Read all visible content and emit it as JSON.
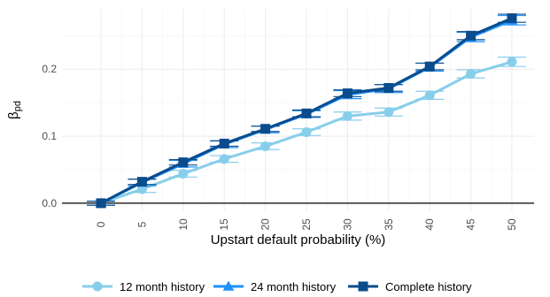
{
  "chart_data": {
    "type": "line",
    "xlabel": "Upstart default probability (%)",
    "ylabel_main": "β",
    "ylabel_sub": "pd",
    "x": [
      0,
      5,
      10,
      15,
      20,
      25,
      30,
      35,
      40,
      45,
      50
    ],
    "x_tick_labels": [
      "0",
      "5",
      "10",
      "15",
      "20",
      "25",
      "30",
      "35",
      "40",
      "45",
      "50"
    ],
    "y_ticks": [
      0.0,
      0.1,
      0.2
    ],
    "y_tick_labels": [
      "0.0",
      "0.1",
      "0.2"
    ],
    "ylim": [
      -0.012,
      0.29
    ],
    "grid": true,
    "legend_position": "bottom",
    "series": [
      {
        "name": "12 month history",
        "marker": "circle",
        "color": "#87ceeb",
        "values": [
          0.0,
          0.021,
          0.044,
          0.066,
          0.085,
          0.106,
          0.13,
          0.136,
          0.161,
          0.193,
          0.211
        ],
        "error": [
          0.003,
          0.005,
          0.005,
          0.005,
          0.005,
          0.005,
          0.006,
          0.006,
          0.006,
          0.006,
          0.007
        ]
      },
      {
        "name": "24 month history",
        "marker": "triangle",
        "color": "#1e90ff",
        "values": [
          0.0,
          0.031,
          0.059,
          0.088,
          0.11,
          0.133,
          0.162,
          0.171,
          0.203,
          0.248,
          0.273
        ],
        "error": [
          0.003,
          0.005,
          0.005,
          0.005,
          0.005,
          0.005,
          0.006,
          0.006,
          0.006,
          0.007,
          0.007
        ]
      },
      {
        "name": "Complete history",
        "marker": "square",
        "color": "#0a4c8c",
        "values": [
          0.0,
          0.032,
          0.061,
          0.089,
          0.111,
          0.134,
          0.164,
          0.172,
          0.204,
          0.25,
          0.276
        ],
        "error": [
          0.003,
          0.004,
          0.004,
          0.004,
          0.004,
          0.005,
          0.005,
          0.005,
          0.005,
          0.006,
          0.006
        ]
      }
    ]
  }
}
